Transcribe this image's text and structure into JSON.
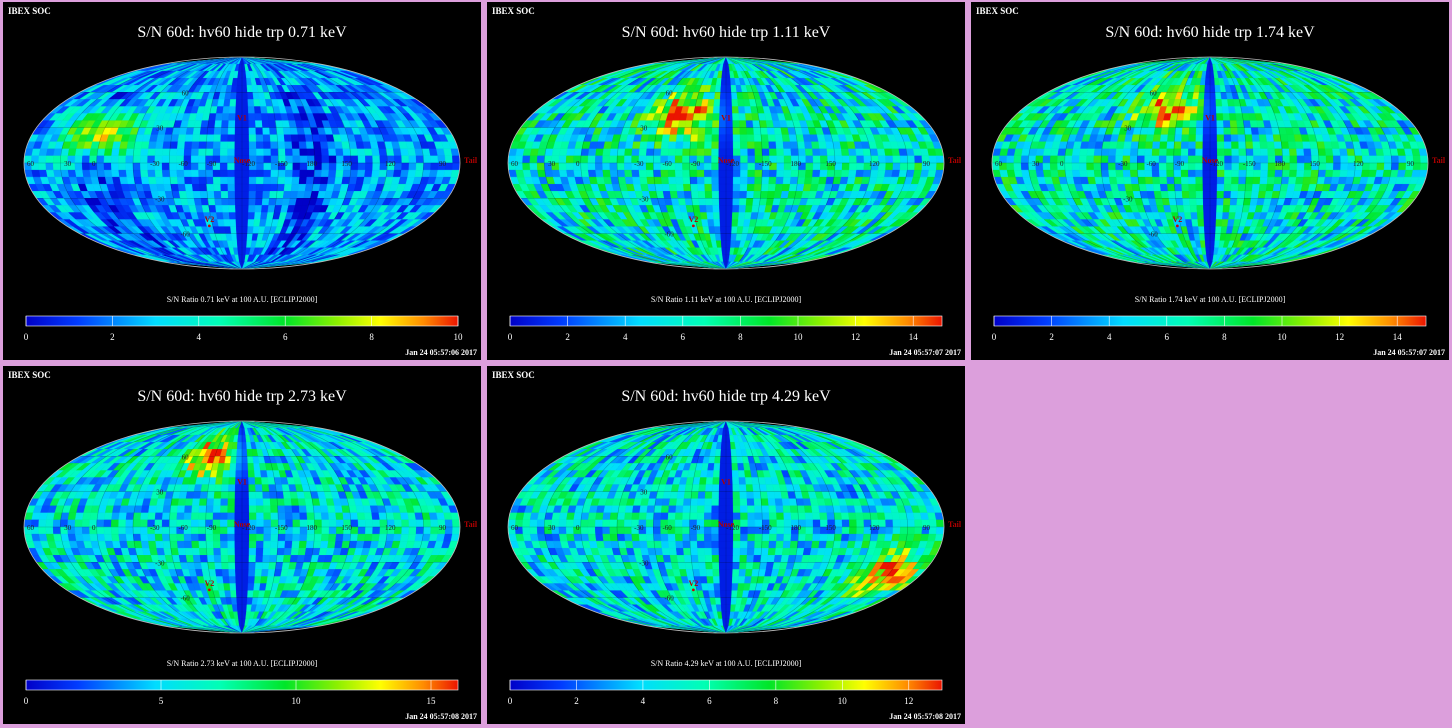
{
  "page": {
    "background": "#dc9fdc"
  },
  "chart_data": [
    {
      "type": "heatmap",
      "label": "IBEX SOC",
      "title": "S/N  60d: hv60 hide trp 0.71 keV",
      "caption": "S/N Ratio 0.71 keV at 100 A.U. [ECLIPJ2000]",
      "timestamp": "Jan 24 05:57:06 2017",
      "colorbar_ticks": [
        "0",
        "2",
        "4",
        "6",
        "8",
        "10"
      ],
      "range": [
        0,
        10
      ],
      "map_markers": [
        "Nose",
        "V1",
        "V2",
        "Tail"
      ],
      "longitude_labels": [
        "60",
        "30",
        "0",
        "-30",
        "-60",
        "-90",
        "-120",
        "-150",
        "180",
        "150",
        "120",
        "90"
      ],
      "latitude_labels": [
        "60",
        "30",
        "-30",
        "-60"
      ],
      "palette": "cool",
      "hotspot": {
        "lon": 120,
        "lat": 25,
        "value": 9.5
      }
    },
    {
      "type": "heatmap",
      "label": "IBEX SOC",
      "title": "S/N  60d: hv60 hide trp 1.11 keV",
      "caption": "S/N Ratio 1.11 keV at 100 A.U. [ECLIPJ2000]",
      "timestamp": "Jan 24 05:57:07 2017",
      "colorbar_ticks": [
        "0",
        "2",
        "4",
        "6",
        "8",
        "10",
        "12",
        "14"
      ],
      "range": [
        0,
        15
      ],
      "map_markers": [
        "Nose",
        "V1",
        "V2",
        "Tail"
      ],
      "longitude_labels": [
        "60",
        "30",
        "0",
        "-30",
        "-60",
        "-90",
        "-120",
        "-150",
        "180",
        "150",
        "120",
        "90"
      ],
      "latitude_labels": [
        "60",
        "30",
        "-30",
        "-60"
      ],
      "palette": "warm",
      "hotspot": {
        "lon": 40,
        "lat": 40,
        "value": 14
      }
    },
    {
      "type": "heatmap",
      "label": "IBEX SOC",
      "title": "S/N  60d: hv60 hide trp 1.74 keV",
      "caption": "S/N Ratio 1.74 keV at 100 A.U. [ECLIPJ2000]",
      "timestamp": "Jan 24 05:57:07 2017",
      "colorbar_ticks": [
        "0",
        "2",
        "4",
        "6",
        "8",
        "10",
        "12",
        "14"
      ],
      "range": [
        0,
        15
      ],
      "map_markers": [
        "Nose",
        "V1",
        "V2",
        "Tail"
      ],
      "longitude_labels": [
        "60",
        "30",
        "0",
        "-30",
        "-60",
        "-90",
        "-120",
        "-150",
        "180",
        "150",
        "120",
        "90"
      ],
      "latitude_labels": [
        "60",
        "30",
        "-30",
        "-60"
      ],
      "palette": "warm",
      "hotspot": {
        "lon": 40,
        "lat": 45,
        "value": 13.5
      }
    },
    {
      "type": "heatmap",
      "label": "IBEX SOC",
      "title": "S/N  60d: hv60 hide trp 2.73 keV",
      "caption": "S/N Ratio 2.73 keV at 100 A.U. [ECLIPJ2000]",
      "timestamp": "Jan 24 05:57:08 2017",
      "colorbar_ticks": [
        "0",
        "5",
        "10",
        "15"
      ],
      "range": [
        0,
        16
      ],
      "map_markers": [
        "Nose",
        "V1",
        "V2",
        "Tail"
      ],
      "longitude_labels": [
        "60",
        "30",
        "0",
        "-30",
        "-60",
        "-90",
        "-120",
        "-150",
        "180",
        "150",
        "120",
        "90"
      ],
      "latitude_labels": [
        "60",
        "30",
        "-30",
        "-60"
      ],
      "palette": "mid",
      "hotspot": {
        "lon": 35,
        "lat": 60,
        "value": 15
      }
    },
    {
      "type": "heatmap",
      "label": "IBEX SOC",
      "title": "S/N  60d: hv60 hide trp 4.29 keV",
      "caption": "S/N Ratio 4.29 keV at 100 A.U. [ECLIPJ2000]",
      "timestamp": "Jan 24 05:57:08 2017",
      "colorbar_ticks": [
        "0",
        "2",
        "4",
        "6",
        "8",
        "10",
        "12"
      ],
      "range": [
        0,
        13
      ],
      "map_markers": [
        "Nose",
        "V1",
        "V2",
        "Tail"
      ],
      "longitude_labels": [
        "60",
        "30",
        "0",
        "-30",
        "-60",
        "-90",
        "-120",
        "-150",
        "180",
        "150",
        "120",
        "90"
      ],
      "latitude_labels": [
        "60",
        "30",
        "-30",
        "-60"
      ],
      "palette": "mid",
      "hotspot": {
        "lon": -150,
        "lat": -40,
        "value": 12
      }
    }
  ]
}
